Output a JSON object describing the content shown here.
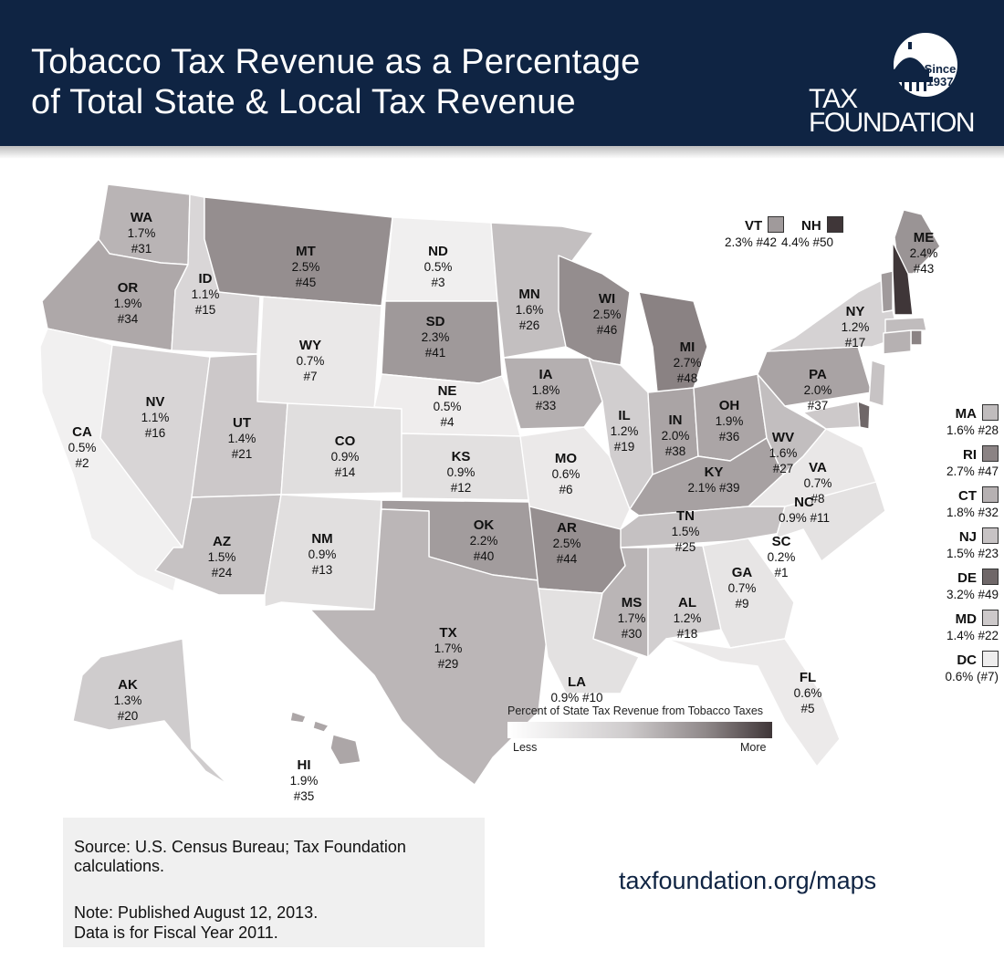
{
  "header": {
    "title_line1": "Tobacco Tax Revenue as a Percentage",
    "title_line2": "of Total State & Local Tax Revenue"
  },
  "logo": {
    "since": "Since",
    "year": "1937",
    "line1": "TAX",
    "line2": "FOUNDATION"
  },
  "legend_scale": {
    "title": "Percent of State Tax Revenue from Tobacco Taxes",
    "low_label": "Less",
    "high_label": "More"
  },
  "states": [
    {
      "abbr": "WA",
      "line2": "1.7%",
      "line3": "#31",
      "color": "#b9b4b5"
    },
    {
      "abbr": "OR",
      "line2": "1.9%",
      "line3": "#34",
      "color": "#aea8a9"
    },
    {
      "abbr": "CA",
      "line2": "0.5%",
      "line3": "#2",
      "color": "#f1f0f0"
    },
    {
      "abbr": "ID",
      "line2": "1.1%",
      "line3": "#15",
      "color": "#d9d6d7"
    },
    {
      "abbr": "NV",
      "line2": "1.1%",
      "line3": "#16",
      "color": "#d8d5d6"
    },
    {
      "abbr": "MT",
      "line2": "2.5%",
      "line3": "#45",
      "color": "#958e8f"
    },
    {
      "abbr": "WY",
      "line2": "0.7%",
      "line3": "#7",
      "color": "#eae8e8"
    },
    {
      "abbr": "UT",
      "line2": "1.4%",
      "line3": "#21",
      "color": "#ccc8c9"
    },
    {
      "abbr": "AZ",
      "line2": "1.5%",
      "line3": "#24",
      "color": "#c6c2c3"
    },
    {
      "abbr": "CO",
      "line2": "0.9%",
      "line3": "#14",
      "color": "#e0dede"
    },
    {
      "abbr": "NM",
      "line2": "0.9%",
      "line3": "#13",
      "color": "#e1dfdf"
    },
    {
      "abbr": "ND",
      "line2": "0.5%",
      "line3": "#3",
      "color": "#f0efef"
    },
    {
      "abbr": "SD",
      "line2": "2.3%",
      "line3": "#41",
      "color": "#9f999a"
    },
    {
      "abbr": "NE",
      "line2": "0.5%",
      "line3": "#4",
      "color": "#efeded"
    },
    {
      "abbr": "KS",
      "line2": "0.9%",
      "line3": "#12",
      "color": "#e2e0e0"
    },
    {
      "abbr": "OK",
      "line2": "2.2%",
      "line3": "#40",
      "color": "#a29c9d"
    },
    {
      "abbr": "TX",
      "line2": "1.7%",
      "line3": "#29",
      "color": "#bbb6b7"
    },
    {
      "abbr": "MN",
      "line2": "1.6%",
      "line3": "#26",
      "color": "#c3bfc0"
    },
    {
      "abbr": "IA",
      "line2": "1.8%",
      "line3": "#33",
      "color": "#b4afb0"
    },
    {
      "abbr": "MO",
      "line2": "0.6%",
      "line3": "#6",
      "color": "#ebe9e9"
    },
    {
      "abbr": "AR",
      "line2": "2.5%",
      "line3": "#44",
      "color": "#968f90"
    },
    {
      "abbr": "LA",
      "line2": "0.9% #10",
      "line3": "",
      "color": "#e3e1e1"
    },
    {
      "abbr": "WI",
      "line2": "2.5%",
      "line3": "#46",
      "color": "#948d8e"
    },
    {
      "abbr": "IL",
      "line2": "1.2%",
      "line3": "#19",
      "color": "#d1cecf"
    },
    {
      "abbr": "MI",
      "line2": "2.7%",
      "line3": "#48",
      "color": "#8a8283"
    },
    {
      "abbr": "IN",
      "line2": "2.0%",
      "line3": "#38",
      "color": "#aaa4a5"
    },
    {
      "abbr": "OH",
      "line2": "1.9%",
      "line3": "#36",
      "color": "#aba5a6"
    },
    {
      "abbr": "KY",
      "line2": "2.1% #39",
      "line3": "",
      "color": "#a7a1a2"
    },
    {
      "abbr": "TN",
      "line2": "1.5%",
      "line3": "#25",
      "color": "#c5c1c2"
    },
    {
      "abbr": "MS",
      "line2": "1.7%",
      "line3": "#30",
      "color": "#bab5b6"
    },
    {
      "abbr": "AL",
      "line2": "1.2%",
      "line3": "#18",
      "color": "#d2cfd0"
    },
    {
      "abbr": "GA",
      "line2": "0.7%",
      "line3": "#9",
      "color": "#e7e5e5"
    },
    {
      "abbr": "FL",
      "line2": "0.6%",
      "line3": "#5",
      "color": "#eceaea"
    },
    {
      "abbr": "SC",
      "line2": "0.2%",
      "line3": "#1",
      "color": "#ffffff"
    },
    {
      "abbr": "NC",
      "line2": "0.9% #11",
      "line3": "",
      "color": "#e4e2e2"
    },
    {
      "abbr": "VA",
      "line2": "0.7%",
      "line3": "#8",
      "color": "#e9e7e7"
    },
    {
      "abbr": "WV",
      "line2": "1.6%",
      "line3": "#27",
      "color": "#c2bebf"
    },
    {
      "abbr": "PA",
      "line2": "2.0%",
      "line3": "#37",
      "color": "#a9a3a4"
    },
    {
      "abbr": "NY",
      "line2": "1.2%",
      "line3": "#17",
      "color": "#d5d2d3"
    },
    {
      "abbr": "ME",
      "line2": "2.4%",
      "line3": "#43",
      "color": "#9a9495"
    },
    {
      "abbr": "AK",
      "line2": "1.3%",
      "line3": "#20",
      "color": "#cfcccd"
    },
    {
      "abbr": "HI",
      "line2": "1.9%",
      "line3": "#35",
      "color": "#aca6a7"
    }
  ],
  "small_states": [
    {
      "abbr": "VT",
      "value": "2.3% #42",
      "color": "#a09a9b"
    },
    {
      "abbr": "NH",
      "value": "4.4% #50",
      "color": "#3f3638"
    },
    {
      "abbr": "MA",
      "value": "1.6% #28",
      "color": "#c0bcbd"
    },
    {
      "abbr": "RI",
      "value": "2.7% #47",
      "color": "#8b8384"
    },
    {
      "abbr": "CT",
      "value": "1.8% #32",
      "color": "#b6b1b2"
    },
    {
      "abbr": "NJ",
      "value": "1.5% #23",
      "color": "#c7c3c4"
    },
    {
      "abbr": "DE",
      "value": "3.2% #49",
      "color": "#6f6768"
    },
    {
      "abbr": "MD",
      "value": "1.4% #22",
      "color": "#cdc9ca"
    },
    {
      "abbr": "DC",
      "value": "0.6% (#7)",
      "color": "#eeeded"
    }
  ],
  "footer": {
    "source": "Source: U.S. Census Bureau; Tax Foundation calculations.",
    "note_line1": "Note: Published August 12, 2013.",
    "note_line2": "Data is for Fiscal Year 2011.",
    "url": "taxfoundation.org/maps"
  }
}
